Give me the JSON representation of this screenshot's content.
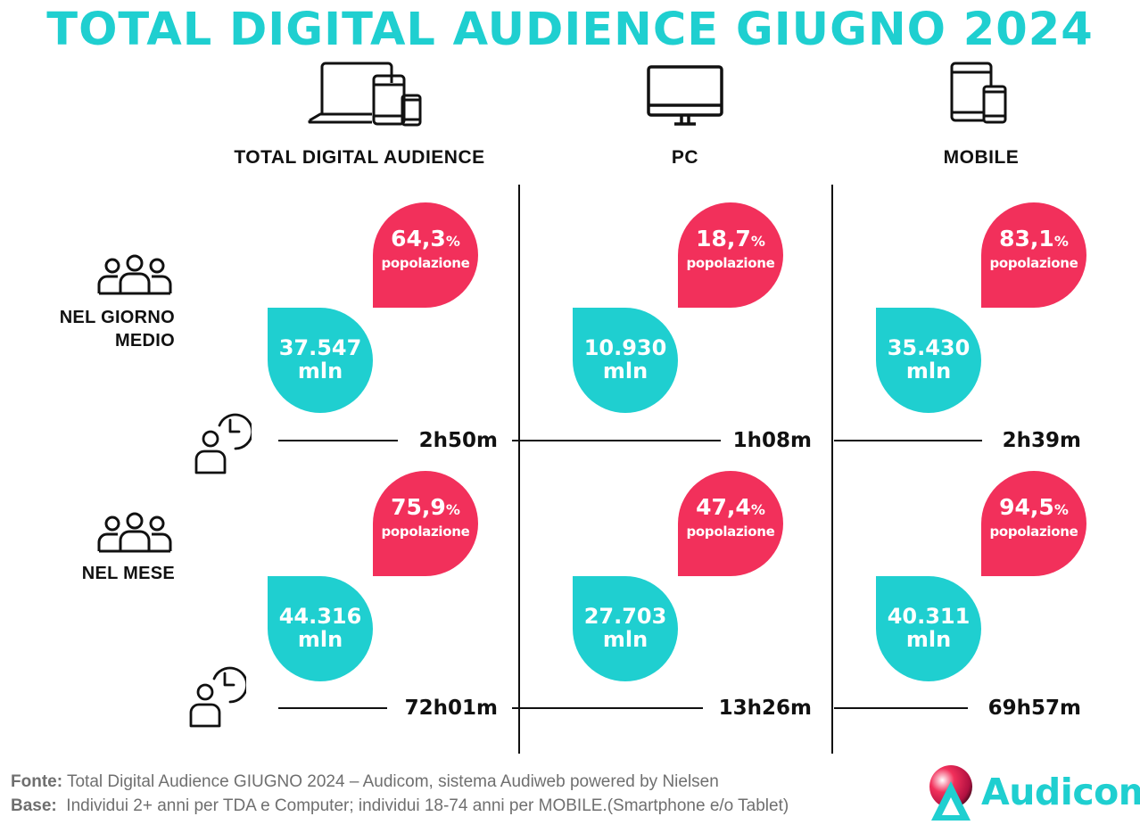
{
  "title": "TOTAL DIGITAL AUDIENCE GIUGNO 2024",
  "columns": [
    {
      "label": "TOTAL DIGITAL AUDIENCE",
      "icon": "multi-device-icon"
    },
    {
      "label": "PC",
      "icon": "desktop-monitor-icon"
    },
    {
      "label": "MOBILE",
      "icon": "tablet-smartphone-icon"
    }
  ],
  "rows": [
    {
      "label_line1": "NEL GIORNO",
      "label_line2": "MEDIO",
      "icon": "people-group-icon",
      "time_icon": "person-clock-icon",
      "cells": [
        {
          "pct": "64,3",
          "pct_unit": "%",
          "pop_label": "popolazione",
          "users": "37.547",
          "users_unit": "mln",
          "time": "2h50m"
        },
        {
          "pct": "18,7",
          "pct_unit": "%",
          "pop_label": "popolazione",
          "users": "10.930",
          "users_unit": "mln",
          "time": "1h08m"
        },
        {
          "pct": "83,1",
          "pct_unit": "%",
          "pop_label": "popolazione",
          "users": "35.430",
          "users_unit": "mln",
          "time": "2h39m"
        }
      ]
    },
    {
      "label_line1": "NEL MESE",
      "label_line2": "",
      "icon": "people-group-icon",
      "time_icon": "person-clock-icon",
      "cells": [
        {
          "pct": "75,9",
          "pct_unit": "%",
          "pop_label": "popolazione",
          "users": "44.316",
          "users_unit": "mln",
          "time": "72h01m"
        },
        {
          "pct": "47,4",
          "pct_unit": "%",
          "pop_label": "popolazione",
          "users": "27.703",
          "users_unit": "mln",
          "time": "13h26m"
        },
        {
          "pct": "94,5",
          "pct_unit": "%",
          "pop_label": "popolazione",
          "users": "40.311",
          "users_unit": "mln",
          "time": "69h57m"
        }
      ]
    }
  ],
  "footer": {
    "fonte_label": "Fonte:",
    "fonte_text": " Total Digital Audience GIUGNO 2024 – Audicom, sistema Audiweb powered by Nielsen",
    "base_label": "Base:",
    "base_text": "  Individui 2+ anni per TDA e Computer; individui 18-74 anni per MOBILE.(Smartphone e/o Tablet)"
  },
  "logo": {
    "text": "Audicom",
    "icon": "audicom-logo-icon"
  },
  "colors": {
    "teal": "#1fcfd0",
    "pink": "#f2305b",
    "ink": "#111111",
    "footer_gray": "#6f6f6f"
  }
}
